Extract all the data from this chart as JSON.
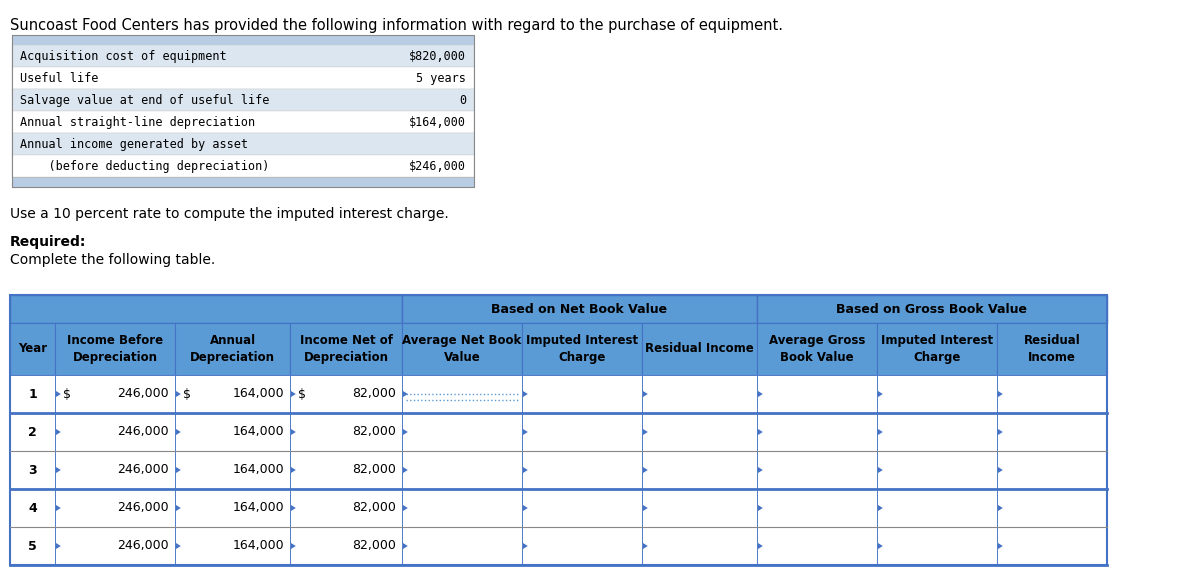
{
  "title": "Suncoast Food Centers has provided the following information with regard to the purchase of equipment.",
  "info_rows": [
    [
      "Acquisition cost of equipment",
      "$820,000"
    ],
    [
      "Useful life",
      "5 years"
    ],
    [
      "Salvage value at end of useful life",
      "0"
    ],
    [
      "Annual straight-line depreciation",
      "$164,000"
    ],
    [
      "Annual income generated by asset",
      ""
    ],
    [
      "    (before deducting depreciation)",
      "$246,000"
    ]
  ],
  "note": "Use a 10 percent rate to compute the imputed interest charge.",
  "required_label": "Required:",
  "required_sub": "Complete the following table.",
  "header_group1": "Based on Net Book Value",
  "header_group2": "Based on Gross Book Value",
  "col_headers": [
    "Year",
    "Income Before\nDepreciation",
    "Annual\nDepreciation",
    "Income Net of\nDepreciation",
    "Average Net Book\nValue",
    "Imputed Interest\nCharge",
    "Residual Income",
    "Average Gross\nBook Value",
    "Imputed Interest\nCharge",
    "Residual\nIncome"
  ],
  "years": [
    "1",
    "2",
    "3",
    "4",
    "5"
  ],
  "col1_vals": [
    "246,000",
    "246,000",
    "246,000",
    "246,000",
    "246,000"
  ],
  "col2_vals": [
    "164,000",
    "164,000",
    "164,000",
    "164,000",
    "164,000"
  ],
  "col3_vals": [
    "82,000",
    "82,000",
    "82,000",
    "82,000",
    "82,000"
  ],
  "header_blue": "#5b9bd5",
  "header_blue_dark": "#4472c4",
  "info_bg_light": "#dce6f0",
  "info_bg_mid": "#b8cce4",
  "info_row_alt": "#dce6f0",
  "row_sep_blue": "#4472c4",
  "row_sep_gray": "#aaaaaa",
  "border_blue": "#4472c4",
  "white": "#ffffff"
}
